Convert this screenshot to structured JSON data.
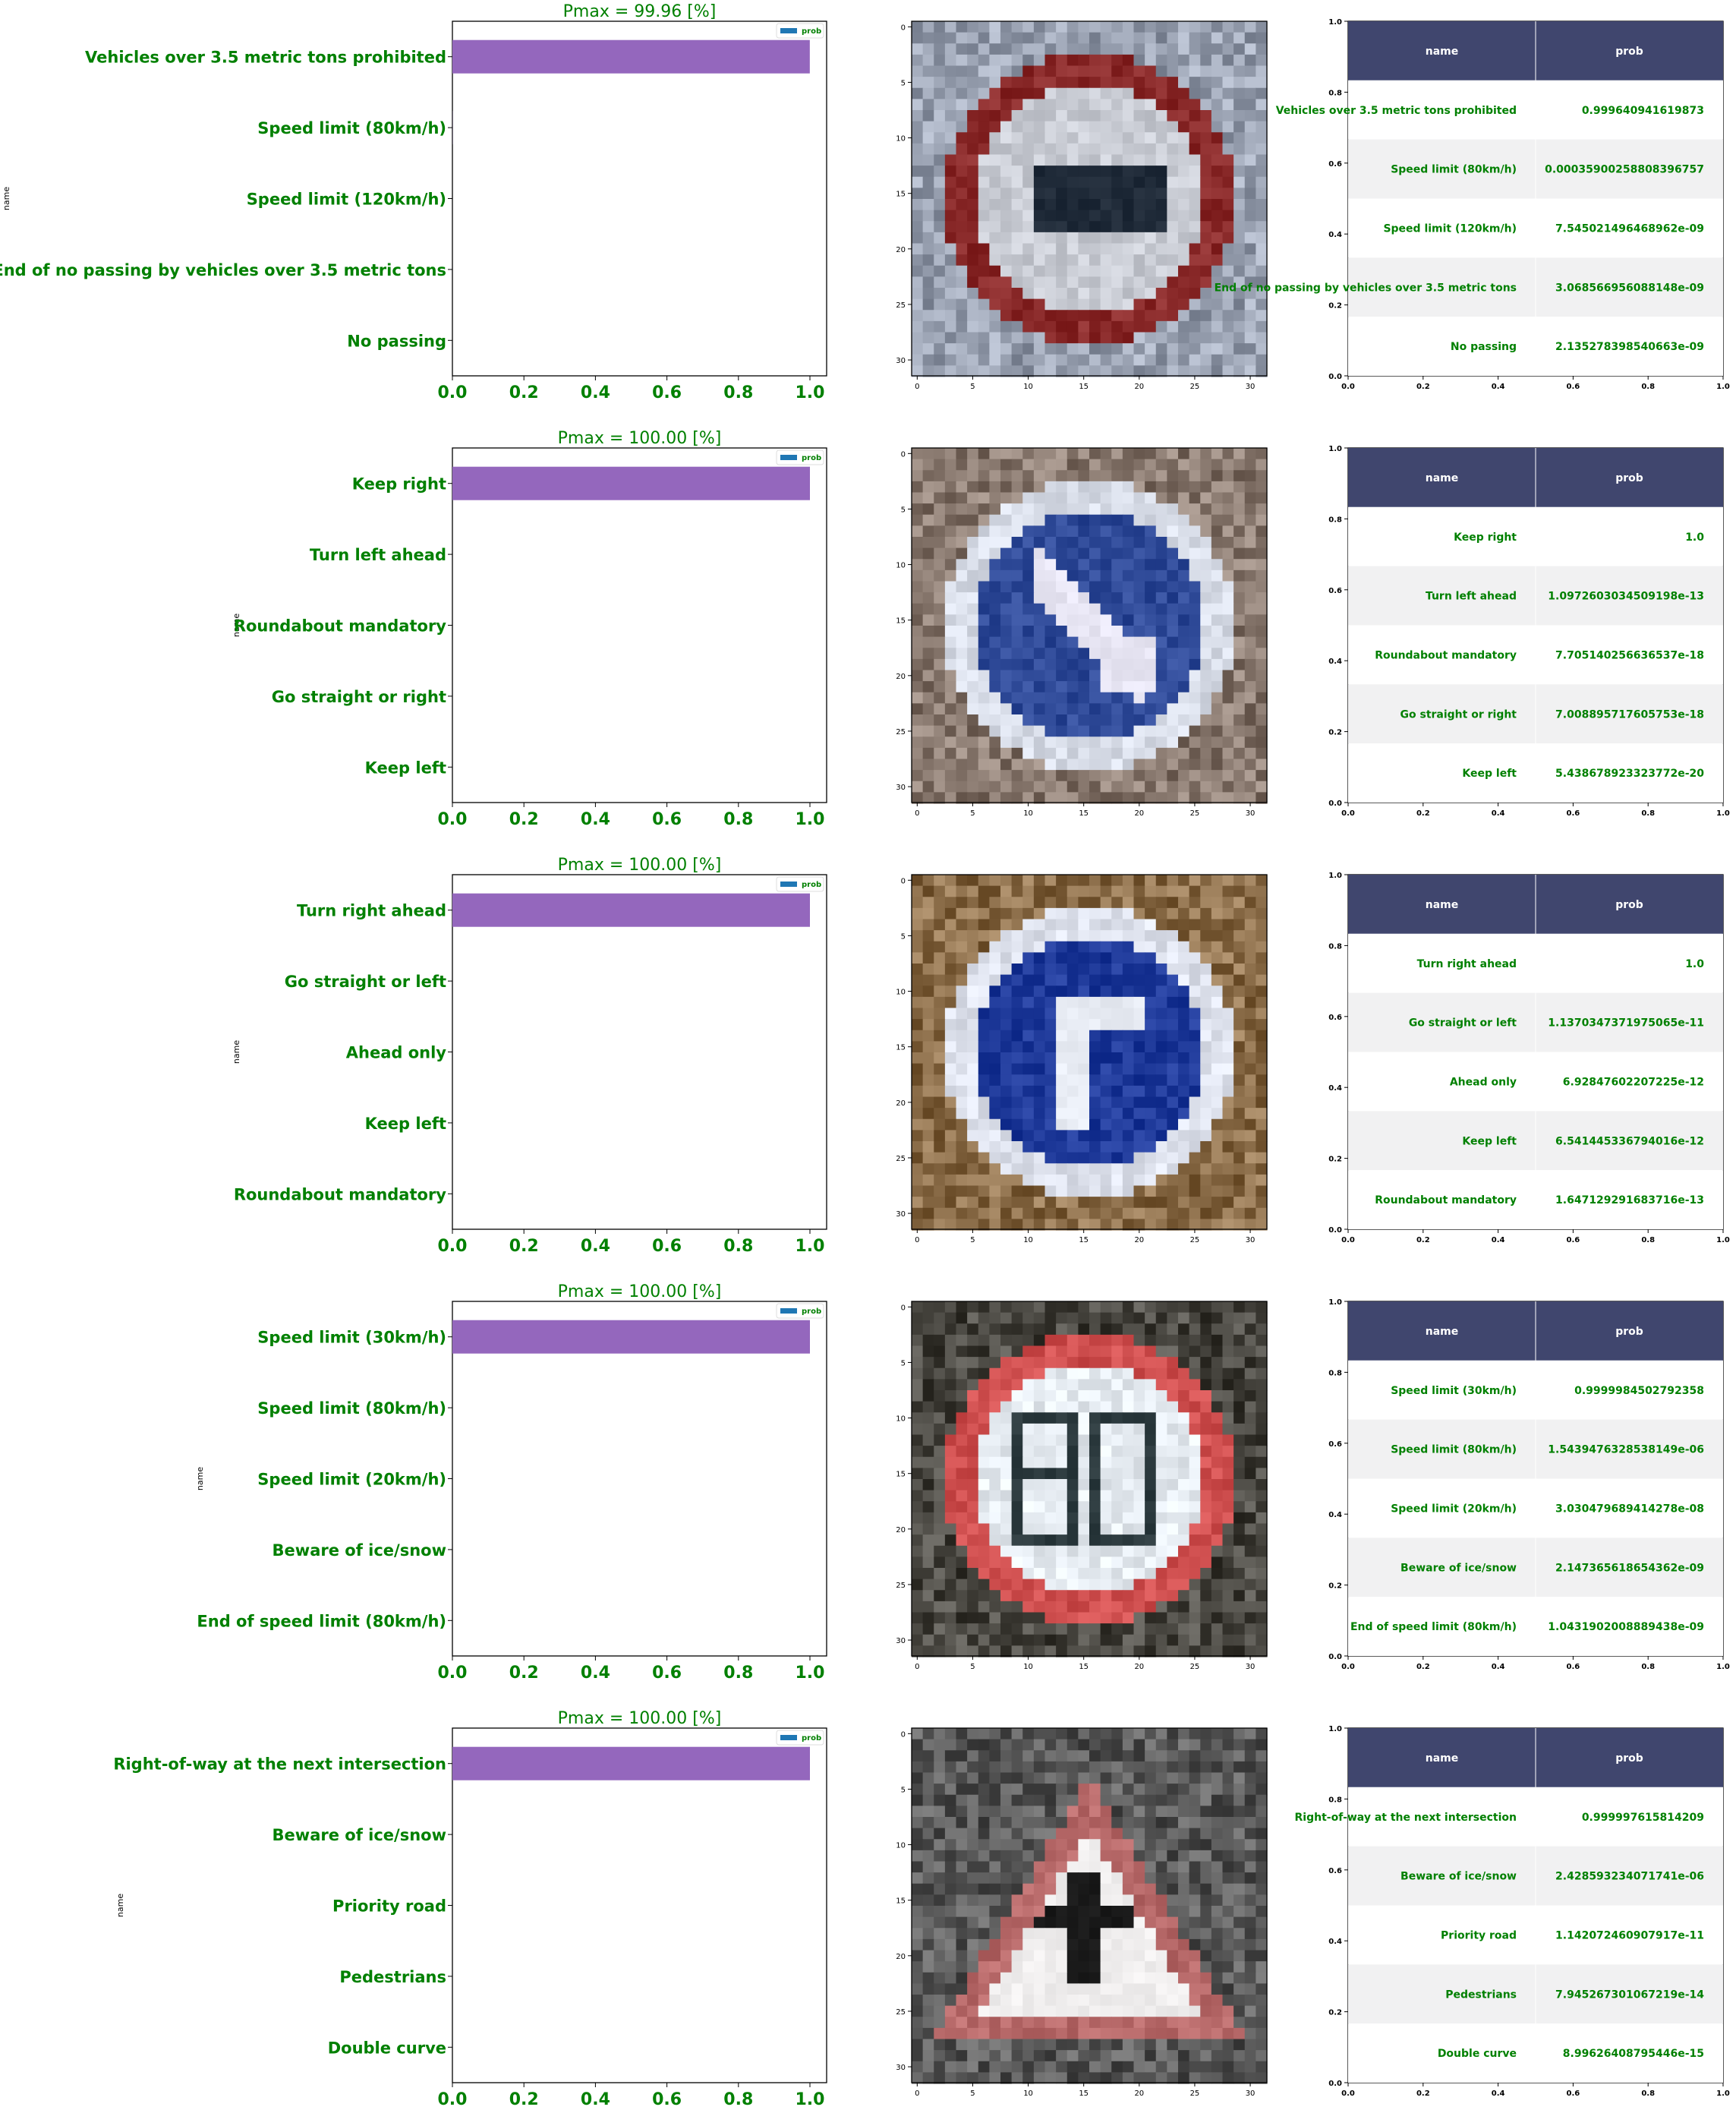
{
  "colors": {
    "label_green": "#008000",
    "bar_purple": "#9467bd",
    "legend_blue": "#1f77b4",
    "table_header": "#40466e",
    "table_stripe": "#f1f1f2",
    "table_header_text": "#ffffff"
  },
  "chart_data": [
    {
      "type": "bar",
      "title": "Pmax = 99.96 [%]",
      "ylabel": "name",
      "legend": "prob",
      "legend_placement": "top-right",
      "xlim": [
        0,
        1
      ],
      "xticks": [
        "0.0",
        "0.2",
        "0.4",
        "0.6",
        "0.8",
        "1.0"
      ],
      "categories": [
        "Vehicles over 3.5 metric tons prohibited",
        "Speed limit (80km/h)",
        "Speed limit (120km/h)",
        "End of no passing by vehicles over 3.5 metric tons",
        "No passing"
      ],
      "values": [
        0.999640941619873,
        0.00035900258808396757,
        7.545021496468962e-09,
        3.068566956088148e-09,
        2.135278398540663e-09
      ],
      "value_labels": [
        "0.999640941619873",
        "0.00035900258808396757",
        "7.545021496468962e-09",
        "3.068566956088148e-09",
        "2.135278398540663e-09"
      ],
      "image_ticks": [
        "0",
        "5",
        "10",
        "15",
        "20",
        "25",
        "30"
      ],
      "sign": {
        "kind": "circle",
        "ring": "#8a2a2a",
        "fill": "#c9ccd4",
        "symbol": "truck",
        "bg": "#9aa2b2"
      },
      "table_header": [
        "name",
        "prob"
      ],
      "table_yticks": [
        "0.0",
        "0.2",
        "0.4",
        "0.6",
        "0.8",
        "1.0"
      ],
      "table_xticks": [
        "0.0",
        "0.2",
        "0.4",
        "0.6",
        "0.8",
        "1.0"
      ]
    },
    {
      "type": "bar",
      "title": "Pmax = 100.00 [%]",
      "ylabel": "name",
      "legend": "prob",
      "legend_placement": "top-right",
      "xlim": [
        0,
        1
      ],
      "xticks": [
        "0.0",
        "0.2",
        "0.4",
        "0.6",
        "0.8",
        "1.0"
      ],
      "categories": [
        "Keep right",
        "Turn left ahead",
        "Roundabout mandatory",
        "Go straight or right",
        "Keep left"
      ],
      "values": [
        1.0,
        1.0972603034509198e-13,
        7.705140256636537e-18,
        7.008895717605753e-18,
        5.438678923323772e-20
      ],
      "value_labels": [
        "1.0",
        "1.0972603034509198e-13",
        "7.705140256636537e-18",
        "7.008895717605753e-18",
        "5.438678923323772e-20"
      ],
      "image_ticks": [
        "0",
        "5",
        "10",
        "15",
        "20",
        "25",
        "30"
      ],
      "sign": {
        "kind": "circle",
        "ring": "#d8dde8",
        "fill": "#2f4a98",
        "symbol": "arrow-down-right",
        "bg": "#8a7a70"
      },
      "table_header": [
        "name",
        "prob"
      ],
      "table_yticks": [
        "0.0",
        "0.2",
        "0.4",
        "0.6",
        "0.8",
        "1.0"
      ],
      "table_xticks": [
        "0.0",
        "0.2",
        "0.4",
        "0.6",
        "0.8",
        "1.0"
      ]
    },
    {
      "type": "bar",
      "title": "Pmax = 100.00 [%]",
      "ylabel": "name",
      "legend": "prob",
      "legend_placement": "top-right",
      "xlim": [
        0,
        1
      ],
      "xticks": [
        "0.0",
        "0.2",
        "0.4",
        "0.6",
        "0.8",
        "1.0"
      ],
      "categories": [
        "Turn right ahead",
        "Go straight or left",
        "Ahead only",
        "Keep left",
        "Roundabout mandatory"
      ],
      "values": [
        1.0,
        1.1370347371975065e-11,
        6.92847602207225e-12,
        6.541445336794016e-12,
        1.647129291683716e-13
      ],
      "value_labels": [
        "1.0",
        "1.1370347371975065e-11",
        "6.92847602207225e-12",
        "6.541445336794016e-12",
        "1.647129291683716e-13"
      ],
      "image_ticks": [
        "0",
        "5",
        "10",
        "15",
        "20",
        "25",
        "30"
      ],
      "sign": {
        "kind": "circle",
        "ring": "#dfe3ee",
        "fill": "#1f3a9a",
        "symbol": "turn-right",
        "bg": "#8c6e4a"
      },
      "table_header": [
        "name",
        "prob"
      ],
      "table_yticks": [
        "0.0",
        "0.2",
        "0.4",
        "0.6",
        "0.8",
        "1.0"
      ],
      "table_xticks": [
        "0.0",
        "0.2",
        "0.4",
        "0.6",
        "0.8",
        "1.0"
      ]
    },
    {
      "type": "bar",
      "title": "Pmax = 100.00 [%]",
      "ylabel": "name",
      "legend": "prob",
      "legend_placement": "top-right",
      "xlim": [
        0,
        1
      ],
      "xticks": [
        "0.0",
        "0.2",
        "0.4",
        "0.6",
        "0.8",
        "1.0"
      ],
      "categories": [
        "Speed limit (30km/h)",
        "Speed limit (80km/h)",
        "Speed limit (20km/h)",
        "Beware of ice/snow",
        "End of speed limit (80km/h)"
      ],
      "values": [
        0.9999984502792358,
        1.5439476328538149e-06,
        3.030479689414278e-08,
        2.147365618654362e-09,
        1.0431902008889438e-09
      ],
      "value_labels": [
        "0.9999984502792358",
        "1.5439476328538149e-06",
        "3.030479689414278e-08",
        "2.147365618654362e-09",
        "1.0431902008889438e-09"
      ],
      "image_ticks": [
        "0",
        "5",
        "10",
        "15",
        "20",
        "25",
        "30"
      ],
      "sign": {
        "kind": "circle",
        "ring": "#d05050",
        "fill": "#e6ecf2",
        "symbol": "number-30",
        "bg": "#4a4842"
      },
      "table_header": [
        "name",
        "prob"
      ],
      "table_yticks": [
        "0.0",
        "0.2",
        "0.4",
        "0.6",
        "0.8",
        "1.0"
      ],
      "table_xticks": [
        "0.0",
        "0.2",
        "0.4",
        "0.6",
        "0.8",
        "1.0"
      ]
    },
    {
      "type": "bar",
      "title": "Pmax = 100.00 [%]",
      "ylabel": "name",
      "legend": "prob",
      "legend_placement": "top-right",
      "xlim": [
        0,
        1
      ],
      "xticks": [
        "0.0",
        "0.2",
        "0.4",
        "0.6",
        "0.8",
        "1.0"
      ],
      "categories": [
        "Right-of-way at the next intersection",
        "Beware of ice/snow",
        "Priority road",
        "Pedestrians",
        "Double curve"
      ],
      "values": [
        0.999997615814209,
        2.428593234071741e-06,
        1.142072460907917e-11,
        7.945267301067219e-14,
        8.99626408795446e-15
      ],
      "value_labels": [
        "0.999997615814209",
        "2.428593234071741e-06",
        "1.142072460907917e-11",
        "7.945267301067219e-14",
        "8.99626408795446e-15"
      ],
      "image_ticks": [
        "0",
        "5",
        "10",
        "15",
        "20",
        "25",
        "30"
      ],
      "sign": {
        "kind": "triangle",
        "ring": "#b86a6a",
        "fill": "#f0eeee",
        "symbol": "cross",
        "bg": "#5a5a5a"
      },
      "table_header": [
        "name",
        "prob"
      ],
      "table_yticks": [
        "0.0",
        "0.2",
        "0.4",
        "0.6",
        "0.8",
        "1.0"
      ],
      "table_xticks": [
        "0.0",
        "0.2",
        "0.4",
        "0.6",
        "0.8",
        "1.0"
      ]
    }
  ]
}
